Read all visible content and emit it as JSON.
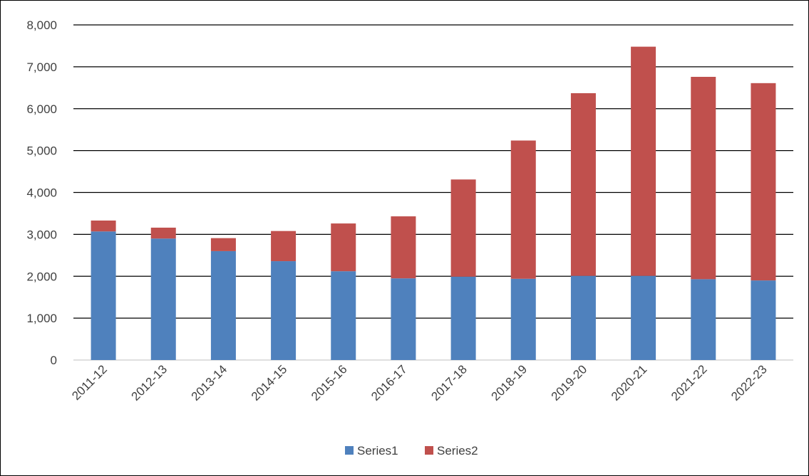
{
  "chart_data": {
    "type": "bar",
    "stacked": true,
    "categories": [
      "2011-12",
      "2012-13",
      "2013-14",
      "2014-15",
      "2015-16",
      "2016-17",
      "2017-18",
      "2018-19",
      "2019-20",
      "2020-21",
      "2021-22",
      "2022-23"
    ],
    "series": [
      {
        "name": "Series1",
        "color": "#4F81BD",
        "values": [
          3070,
          2900,
          2600,
          2360,
          2120,
          1950,
          1990,
          1940,
          2010,
          2010,
          1930,
          1900
        ]
      },
      {
        "name": "Series2",
        "color": "#C0504D",
        "values": [
          260,
          260,
          310,
          720,
          1140,
          1480,
          2320,
          3300,
          4360,
          5470,
          4830,
          4710
        ]
      }
    ],
    "ylim": [
      0,
      8000
    ],
    "yticks": [
      0,
      1000,
      2000,
      3000,
      4000,
      5000,
      6000,
      7000,
      8000
    ],
    "ytick_labels": [
      "0",
      "1,000",
      "2,000",
      "3,000",
      "4,000",
      "5,000",
      "6,000",
      "7,000",
      "8,000"
    ],
    "grid": true,
    "legend_position": "bottom",
    "title": "",
    "xlabel": "",
    "ylabel": ""
  }
}
